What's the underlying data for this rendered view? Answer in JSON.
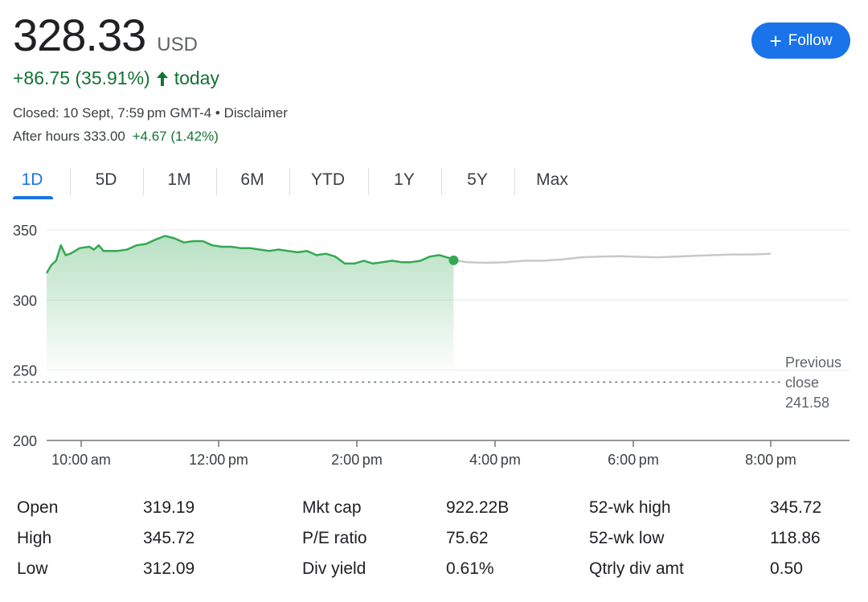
{
  "quote": {
    "price": "328.33",
    "currency": "USD",
    "change": "+86.75 (35.91%)",
    "today": "today",
    "closed": "Closed: 10 Sept, 7:59 pm GMT-4 • Disclaimer",
    "after_hours_label": "After hours 333.00",
    "after_hours_change": "+4.67 (1.42%)"
  },
  "follow_button": {
    "label": "Follow"
  },
  "tabs": [
    {
      "label": "1D",
      "active": true
    },
    {
      "label": "5D"
    },
    {
      "label": "1M"
    },
    {
      "label": "6M"
    },
    {
      "label": "YTD"
    },
    {
      "label": "1Y"
    },
    {
      "label": "5Y"
    },
    {
      "label": "Max"
    }
  ],
  "colors": {
    "gain": "#137333",
    "line": "#34a853",
    "after_hours_line": "#c8c8c8",
    "accent": "#1a73e8"
  },
  "icons": {
    "up_arrow": "arrow-up-icon",
    "plus": "plus-icon"
  },
  "chart_data": {
    "type": "line",
    "ylim": [
      200,
      350
    ],
    "y_ticks": [
      350,
      300,
      250,
      200
    ],
    "x_ticks": [
      "10:00 am",
      "12:00 pm",
      "2:00 pm",
      "4:00 pm",
      "6:00 pm",
      "8:00 pm"
    ],
    "previous_close": {
      "label": [
        "Previous",
        "close",
        "241.58"
      ],
      "value": 241.58
    },
    "grid": true,
    "series": [
      {
        "values": [
          [
            9.5,
            319.19
          ],
          [
            9.6,
            325
          ],
          [
            9.7,
            328
          ],
          [
            9.8,
            339
          ],
          [
            9.9,
            332
          ],
          [
            10.0,
            333
          ],
          [
            10.2,
            337
          ],
          [
            10.4,
            338
          ],
          [
            10.5,
            336
          ],
          [
            10.6,
            339
          ],
          [
            10.7,
            335
          ],
          [
            11.0,
            335
          ],
          [
            11.2,
            336
          ],
          [
            11.4,
            339
          ],
          [
            11.6,
            340
          ],
          [
            11.8,
            343
          ],
          [
            12.0,
            345.72
          ],
          [
            12.2,
            344
          ],
          [
            12.4,
            341
          ],
          [
            12.6,
            342
          ],
          [
            12.8,
            342
          ],
          [
            13.0,
            339
          ],
          [
            13.2,
            338
          ],
          [
            13.4,
            338
          ],
          [
            13.6,
            337
          ],
          [
            13.8,
            337
          ],
          [
            14.0,
            336
          ],
          [
            14.2,
            335
          ],
          [
            14.4,
            336
          ],
          [
            14.6,
            335
          ],
          [
            14.8,
            334
          ],
          [
            15.0,
            335
          ],
          [
            15.2,
            332
          ],
          [
            15.4,
            333
          ],
          [
            15.6,
            331
          ],
          [
            15.8,
            326
          ],
          [
            16.0,
            326
          ],
          [
            16.2,
            328
          ],
          [
            16.4,
            326
          ],
          [
            16.6,
            327
          ],
          [
            16.8,
            328
          ],
          [
            17.0,
            327
          ],
          [
            17.2,
            327
          ],
          [
            17.4,
            328
          ],
          [
            17.6,
            331
          ],
          [
            17.8,
            332
          ],
          [
            18.0,
            330
          ],
          [
            18.1,
            328.33
          ]
        ]
      },
      {
        "values": [
          [
            18.1,
            328.33
          ],
          [
            18.4,
            327
          ],
          [
            18.8,
            326.5
          ],
          [
            19.2,
            327
          ],
          [
            19.6,
            328
          ],
          [
            20.0,
            328
          ],
          [
            20.4,
            329
          ],
          [
            20.8,
            330.5
          ],
          [
            21.2,
            331
          ],
          [
            21.6,
            331.2
          ],
          [
            22.0,
            330.8
          ],
          [
            22.4,
            330.5
          ],
          [
            22.8,
            331
          ],
          [
            23.2,
            331.5
          ],
          [
            23.6,
            332
          ],
          [
            24.0,
            332.5
          ],
          [
            24.4,
            332.5
          ],
          [
            24.8,
            333.0
          ]
        ]
      }
    ]
  },
  "stats": {
    "col1": [
      {
        "label": "Open",
        "value": "319.19"
      },
      {
        "label": "High",
        "value": "345.72"
      },
      {
        "label": "Low",
        "value": "312.09"
      }
    ],
    "col2": [
      {
        "label": "Mkt cap",
        "value": "922.22B"
      },
      {
        "label": "P/E ratio",
        "value": "75.62"
      },
      {
        "label": "Div yield",
        "value": "0.61%"
      }
    ],
    "col3": [
      {
        "label": "52-wk high",
        "value": "345.72"
      },
      {
        "label": "52-wk low",
        "value": "118.86"
      },
      {
        "label": "Qtrly div amt",
        "value": "0.50"
      }
    ]
  }
}
